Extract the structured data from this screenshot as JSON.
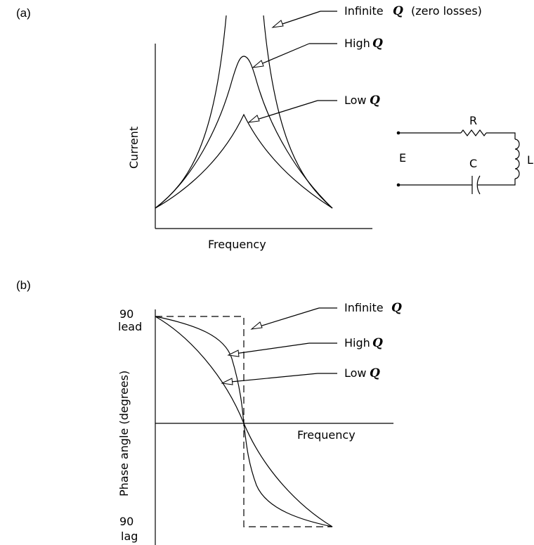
{
  "panel_a": {
    "tag": "(a)",
    "y_axis_label": "Current",
    "x_axis_label": "Frequency",
    "callouts": [
      {
        "text": "Infinite",
        "q": "Q",
        "suffix": "(zero losses)"
      },
      {
        "text": "High",
        "q": "Q",
        "suffix": ""
      },
      {
        "text": "Low",
        "q": "Q",
        "suffix": ""
      }
    ],
    "circuit": {
      "source": "E",
      "resistor": "R",
      "capacitor": "C",
      "inductor": "L"
    }
  },
  "panel_b": {
    "tag": "(b)",
    "y_axis_label": "Phase angle (degrees)",
    "x_axis_label": "Frequency",
    "y_top_value": "90",
    "y_top_word": "lead",
    "y_bottom_value": "90",
    "y_bottom_word": "lag",
    "callouts": [
      {
        "text": "Infinite",
        "q": "Q"
      },
      {
        "text": "High",
        "q": "Q"
      },
      {
        "text": "Low",
        "q": "Q"
      }
    ]
  }
}
